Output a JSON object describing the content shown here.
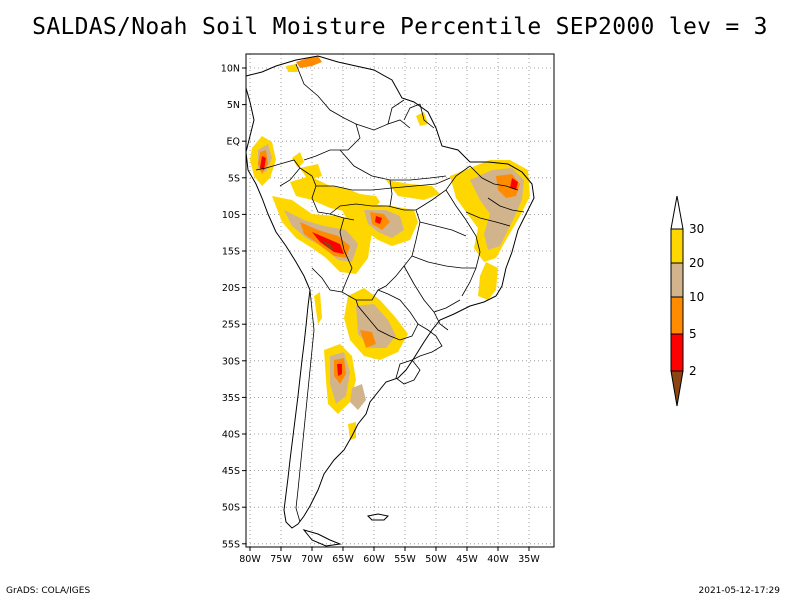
{
  "title": "SALDAS/Noah Soil Moisture Percentile SEP2000 lev = 3",
  "footer": {
    "left": "GrADS: COLA/IGES",
    "right": "2021-05-12-17:29"
  },
  "map": {
    "lat_ticks": [
      "10N",
      "5N",
      "EQ",
      "5S",
      "10S",
      "15S",
      "20S",
      "25S",
      "30S",
      "35S",
      "40S",
      "45S",
      "50S",
      "55S"
    ],
    "lon_ticks": [
      "80W",
      "75W",
      "70W",
      "65W",
      "60W",
      "55W",
      "50W",
      "45W",
      "40W",
      "35W"
    ],
    "grid": "dotted"
  },
  "colorbar": {
    "labels": [
      "2",
      "5",
      "10",
      "20",
      "30"
    ],
    "colors": [
      "#8b4513",
      "#ff0000",
      "#ff8c00",
      "#d2b48c",
      "#ffd700",
      "#ffffff"
    ]
  },
  "colors": {
    "shade_light": "#ffd700",
    "shade_tan": "#d2b48c",
    "shade_orange": "#ff8c00",
    "shade_red": "#ff0000",
    "shade_brown": "#8b4513"
  }
}
